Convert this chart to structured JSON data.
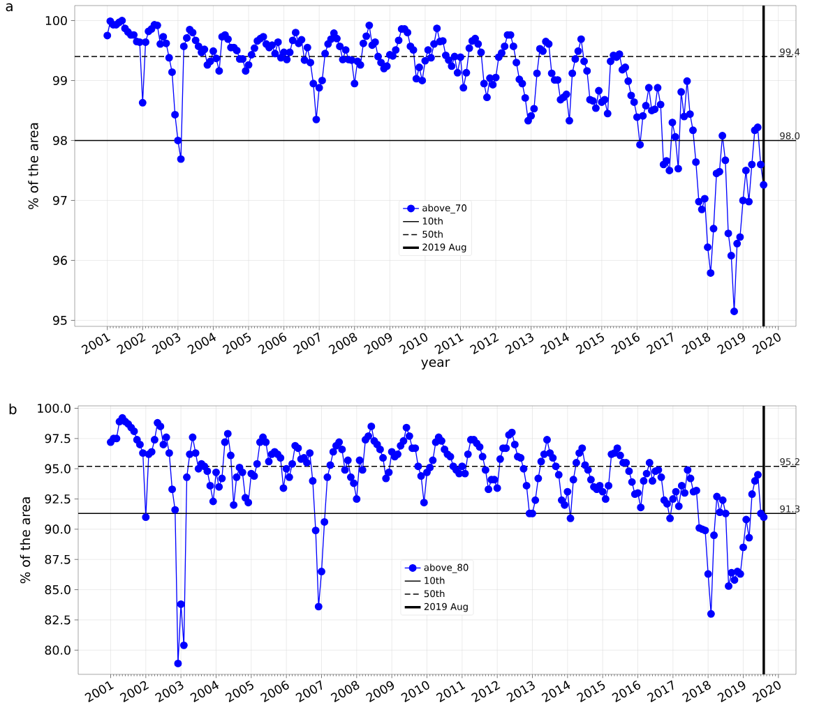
{
  "chart_data": [
    {
      "type": "line",
      "title": "a",
      "xlabel": "year",
      "ylabel": "% of the area",
      "grid": true,
      "legend": "bottom",
      "marker": "circle",
      "x": [
        "2001-01",
        "2001-02",
        "2001-03",
        "2001-04",
        "2001-05",
        "2001-06",
        "2001-07",
        "2001-08",
        "2001-09",
        "2001-10",
        "2001-11",
        "2001-12",
        "2002-01",
        "2002-02",
        "2002-03",
        "2002-04",
        "2002-05",
        "2002-06",
        "2002-07",
        "2002-08",
        "2002-09",
        "2002-10",
        "2002-11",
        "2002-12",
        "2003-01",
        "2003-02",
        "2003-03",
        "2003-04",
        "2003-05",
        "2003-06",
        "2003-07",
        "2003-08",
        "2003-09",
        "2003-10",
        "2003-11",
        "2003-12",
        "2004-01",
        "2004-02",
        "2004-03",
        "2004-04",
        "2004-05",
        "2004-06",
        "2004-07",
        "2004-08",
        "2004-09",
        "2004-10",
        "2004-11",
        "2004-12",
        "2005-01",
        "2005-02",
        "2005-03",
        "2005-04",
        "2005-05",
        "2005-06",
        "2005-07",
        "2005-08",
        "2005-09",
        "2005-10",
        "2005-11",
        "2005-12",
        "2006-01",
        "2006-02",
        "2006-03",
        "2006-04",
        "2006-05",
        "2006-06",
        "2006-07",
        "2006-08",
        "2006-09",
        "2006-10",
        "2006-11",
        "2006-12",
        "2007-01",
        "2007-02",
        "2007-03",
        "2007-04",
        "2007-05",
        "2007-06",
        "2007-07",
        "2007-08",
        "2007-09",
        "2007-10",
        "2007-11",
        "2007-12",
        "2008-01",
        "2008-02",
        "2008-03",
        "2008-04",
        "2008-05",
        "2008-06",
        "2008-07",
        "2008-08",
        "2008-09",
        "2008-10",
        "2008-11",
        "2008-12",
        "2009-01",
        "2009-02",
        "2009-03",
        "2009-04",
        "2009-05",
        "2009-06",
        "2009-07",
        "2009-08",
        "2009-09",
        "2009-10",
        "2009-11",
        "2009-12",
        "2010-01",
        "2010-02",
        "2010-03",
        "2010-04",
        "2010-05",
        "2010-06",
        "2010-07",
        "2010-08",
        "2010-09",
        "2010-10",
        "2010-11",
        "2010-12",
        "2011-01",
        "2011-02",
        "2011-03",
        "2011-04",
        "2011-05",
        "2011-06",
        "2011-07",
        "2011-08",
        "2011-09",
        "2011-10",
        "2011-11",
        "2011-12",
        "2012-01",
        "2012-02",
        "2012-03",
        "2012-04",
        "2012-05",
        "2012-06",
        "2012-07",
        "2012-08",
        "2012-09",
        "2012-10",
        "2012-11",
        "2012-12",
        "2013-01",
        "2013-02",
        "2013-03",
        "2013-04",
        "2013-05",
        "2013-06",
        "2013-07",
        "2013-08",
        "2013-09",
        "2013-10",
        "2013-11",
        "2013-12",
        "2014-01",
        "2014-02",
        "2014-03",
        "2014-04",
        "2014-05",
        "2014-06",
        "2014-07",
        "2014-08",
        "2014-09",
        "2014-10",
        "2014-11",
        "2014-12",
        "2015-01",
        "2015-02",
        "2015-03",
        "2015-04",
        "2015-05",
        "2015-06",
        "2015-07",
        "2015-08",
        "2015-09",
        "2015-10",
        "2015-11",
        "2015-12",
        "2016-01",
        "2016-02",
        "2016-03",
        "2016-04",
        "2016-05",
        "2016-06",
        "2016-07",
        "2016-08",
        "2016-09",
        "2016-10",
        "2016-11",
        "2016-12",
        "2017-01",
        "2017-02",
        "2017-03",
        "2017-04",
        "2017-05",
        "2017-06",
        "2017-07",
        "2017-08",
        "2017-09",
        "2017-10",
        "2017-11",
        "2017-12",
        "2018-01",
        "2018-02",
        "2018-03",
        "2018-04",
        "2018-05",
        "2018-06",
        "2018-07",
        "2018-08",
        "2018-09",
        "2018-10",
        "2018-11",
        "2018-12",
        "2019-01",
        "2019-02",
        "2019-03",
        "2019-04",
        "2019-05",
        "2019-06",
        "2019-07",
        "2019-08"
      ],
      "series": [
        {
          "name": "above_70",
          "color": "#0000ff",
          "values": [
            99.75,
            99.99,
            99.93,
            99.93,
            99.97,
            100.0,
            99.87,
            99.81,
            99.76,
            99.76,
            99.65,
            99.64,
            98.63,
            99.64,
            99.82,
            99.86,
            99.93,
            99.92,
            99.61,
            99.73,
            99.62,
            99.38,
            99.14,
            98.43,
            98.0,
            97.69,
            99.57,
            99.71,
            99.85,
            99.8,
            99.67,
            99.57,
            99.47,
            99.52,
            99.26,
            99.32,
            99.49,
            99.37,
            99.16,
            99.73,
            99.76,
            99.69,
            99.55,
            99.55,
            99.5,
            99.36,
            99.36,
            99.16,
            99.26,
            99.43,
            99.54,
            99.66,
            99.7,
            99.73,
            99.61,
            99.55,
            99.59,
            99.45,
            99.64,
            99.38,
            99.47,
            99.35,
            99.47,
            99.67,
            99.8,
            99.62,
            99.68,
            99.34,
            99.55,
            99.3,
            98.95,
            98.35,
            98.88,
            99.0,
            99.45,
            99.61,
            99.69,
            99.79,
            99.7,
            99.57,
            99.35,
            99.51,
            99.35,
            99.34,
            98.95,
            99.32,
            99.26,
            99.62,
            99.74,
            99.92,
            99.59,
            99.64,
            99.4,
            99.3,
            99.2,
            99.24,
            99.43,
            99.41,
            99.51,
            99.67,
            99.86,
            99.86,
            99.8,
            99.57,
            99.51,
            99.03,
            99.22,
            99.0,
            99.33,
            99.51,
            99.38,
            99.61,
            99.87,
            99.65,
            99.66,
            99.42,
            99.34,
            99.24,
            99.4,
            99.13,
            99.39,
            98.88,
            99.13,
            99.54,
            99.66,
            99.7,
            99.61,
            99.47,
            98.95,
            98.72,
            99.04,
            98.93,
            99.05,
            99.39,
            99.46,
            99.57,
            99.76,
            99.76,
            99.57,
            99.3,
            99.02,
            98.95,
            98.71,
            98.33,
            98.41,
            98.53,
            99.12,
            99.53,
            99.49,
            99.65,
            99.61,
            99.12,
            99.01,
            99.01,
            98.68,
            98.72,
            98.77,
            98.33,
            99.12,
            99.36,
            99.49,
            99.69,
            99.32,
            99.16,
            98.68,
            98.66,
            98.54,
            98.83,
            98.64,
            98.68,
            98.45,
            99.32,
            99.42,
            99.39,
            99.44,
            99.18,
            99.22,
            98.99,
            98.75,
            98.64,
            98.39,
            97.93,
            98.41,
            98.58,
            98.88,
            98.5,
            98.52,
            98.88,
            98.6,
            97.6,
            97.66,
            97.5,
            98.3,
            98.06,
            97.53,
            98.81,
            98.4,
            98.99,
            98.44,
            98.17,
            97.64,
            96.98,
            96.85,
            97.03,
            96.22,
            95.79,
            96.53,
            97.45,
            97.48,
            98.08,
            97.67,
            96.45,
            96.08,
            95.15,
            96.28,
            96.39,
            97.0,
            97.5,
            96.98,
            97.6,
            98.17,
            98.22,
            97.6,
            97.26
          ]
        }
      ],
      "ref_lines": [
        {
          "axis": "y",
          "value": 98.0,
          "label": "10th",
          "line_style": "solid"
        },
        {
          "axis": "y",
          "value": 99.4,
          "label": "50th",
          "line_style": "dashed"
        },
        {
          "axis": "x",
          "value": "2019-08",
          "label": "2019 Aug",
          "line_style": "solid"
        }
      ],
      "annotations": [
        {
          "text": "99.4",
          "x": "2020-01",
          "y": 99.4
        },
        {
          "text": "98.0",
          "x": "2020-01",
          "y": 98.0
        }
      ],
      "xlim": [
        "2000-01-29",
        "2020-07-01"
      ],
      "ylim": [
        94.9,
        100.25
      ],
      "xticks": [
        "2001",
        "2002",
        "2003",
        "2004",
        "2005",
        "2006",
        "2007",
        "2008",
        "2009",
        "2010",
        "2011",
        "2012",
        "2013",
        "2014",
        "2015",
        "2016",
        "2017",
        "2018",
        "2019",
        "2020"
      ],
      "yticks": [
        95,
        96,
        97,
        98,
        99,
        100
      ]
    },
    {
      "type": "line",
      "title": "b",
      "ylabel": "% of the area",
      "grid": true,
      "legend": "bottom",
      "marker": "circle",
      "x": [
        "2001-01",
        "2001-02",
        "2001-03",
        "2001-04",
        "2001-05",
        "2001-06",
        "2001-07",
        "2001-08",
        "2001-09",
        "2001-10",
        "2001-11",
        "2001-12",
        "2002-01",
        "2002-02",
        "2002-03",
        "2002-04",
        "2002-05",
        "2002-06",
        "2002-07",
        "2002-08",
        "2002-09",
        "2002-10",
        "2002-11",
        "2002-12",
        "2003-01",
        "2003-02",
        "2003-03",
        "2003-04",
        "2003-05",
        "2003-06",
        "2003-07",
        "2003-08",
        "2003-09",
        "2003-10",
        "2003-11",
        "2003-12",
        "2004-01",
        "2004-02",
        "2004-03",
        "2004-04",
        "2004-05",
        "2004-06",
        "2004-07",
        "2004-08",
        "2004-09",
        "2004-10",
        "2004-11",
        "2004-12",
        "2005-01",
        "2005-02",
        "2005-03",
        "2005-04",
        "2005-05",
        "2005-06",
        "2005-07",
        "2005-08",
        "2005-09",
        "2005-10",
        "2005-11",
        "2005-12",
        "2006-01",
        "2006-02",
        "2006-03",
        "2006-04",
        "2006-05",
        "2006-06",
        "2006-07",
        "2006-08",
        "2006-09",
        "2006-10",
        "2006-11",
        "2006-12",
        "2007-01",
        "2007-02",
        "2007-03",
        "2007-04",
        "2007-05",
        "2007-06",
        "2007-07",
        "2007-08",
        "2007-09",
        "2007-10",
        "2007-11",
        "2007-12",
        "2008-01",
        "2008-02",
        "2008-03",
        "2008-04",
        "2008-05",
        "2008-06",
        "2008-07",
        "2008-08",
        "2008-09",
        "2008-10",
        "2008-11",
        "2008-12",
        "2009-01",
        "2009-02",
        "2009-03",
        "2009-04",
        "2009-05",
        "2009-06",
        "2009-07",
        "2009-08",
        "2009-09",
        "2009-10",
        "2009-11",
        "2009-12",
        "2010-01",
        "2010-02",
        "2010-03",
        "2010-04",
        "2010-05",
        "2010-06",
        "2010-07",
        "2010-08",
        "2010-09",
        "2010-10",
        "2010-11",
        "2010-12",
        "2011-01",
        "2011-02",
        "2011-03",
        "2011-04",
        "2011-05",
        "2011-06",
        "2011-07",
        "2011-08",
        "2011-09",
        "2011-10",
        "2011-11",
        "2011-12",
        "2012-01",
        "2012-02",
        "2012-03",
        "2012-04",
        "2012-05",
        "2012-06",
        "2012-07",
        "2012-08",
        "2012-09",
        "2012-10",
        "2012-11",
        "2012-12",
        "2013-01",
        "2013-02",
        "2013-03",
        "2013-04",
        "2013-05",
        "2013-06",
        "2013-07",
        "2013-08",
        "2013-09",
        "2013-10",
        "2013-11",
        "2013-12",
        "2014-01",
        "2014-02",
        "2014-03",
        "2014-04",
        "2014-05",
        "2014-06",
        "2014-07",
        "2014-08",
        "2014-09",
        "2014-10",
        "2014-11",
        "2014-12",
        "2015-01",
        "2015-02",
        "2015-03",
        "2015-04",
        "2015-05",
        "2015-06",
        "2015-07",
        "2015-08",
        "2015-09",
        "2015-10",
        "2015-11",
        "2015-12",
        "2016-01",
        "2016-02",
        "2016-03",
        "2016-04",
        "2016-05",
        "2016-06",
        "2016-07",
        "2016-08",
        "2016-09",
        "2016-10",
        "2016-11",
        "2016-12",
        "2017-01",
        "2017-02",
        "2017-03",
        "2017-04",
        "2017-05",
        "2017-06",
        "2017-07",
        "2017-08",
        "2017-09",
        "2017-10",
        "2017-11",
        "2017-12",
        "2018-01",
        "2018-02",
        "2018-03",
        "2018-04",
        "2018-05",
        "2018-06",
        "2018-07",
        "2018-08",
        "2018-09",
        "2018-10",
        "2018-11",
        "2018-12",
        "2019-01",
        "2019-02",
        "2019-03",
        "2019-04",
        "2019-05",
        "2019-06",
        "2019-07",
        "2019-08"
      ],
      "series": [
        {
          "name": "above_80",
          "color": "#0000ff",
          "values": [
            97.2,
            97.5,
            97.5,
            98.9,
            99.2,
            98.9,
            98.7,
            98.4,
            98.1,
            97.4,
            97.0,
            96.3,
            91.0,
            96.2,
            96.4,
            97.4,
            98.8,
            98.5,
            97.0,
            97.6,
            96.3,
            93.3,
            91.6,
            78.9,
            83.8,
            80.4,
            94.3,
            96.2,
            97.6,
            96.3,
            95.0,
            95.4,
            95.2,
            94.8,
            93.6,
            92.3,
            94.7,
            93.5,
            94.2,
            97.2,
            97.9,
            96.1,
            92.0,
            94.3,
            95.1,
            94.7,
            92.6,
            92.2,
            94.6,
            94.4,
            95.4,
            97.2,
            97.6,
            97.2,
            95.6,
            96.2,
            96.4,
            96.2,
            95.9,
            93.4,
            95.0,
            94.3,
            95.4,
            96.9,
            96.7,
            95.8,
            95.9,
            95.5,
            96.3,
            94.0,
            89.9,
            83.6,
            86.5,
            90.6,
            94.3,
            95.3,
            96.4,
            96.9,
            97.2,
            96.6,
            94.9,
            95.7,
            94.3,
            93.8,
            92.5,
            95.7,
            94.9,
            97.4,
            97.7,
            98.5,
            97.3,
            97.0,
            96.6,
            95.9,
            94.2,
            94.7,
            96.4,
            96.0,
            96.2,
            96.9,
            97.3,
            98.4,
            97.7,
            96.7,
            96.7,
            95.2,
            94.4,
            92.2,
            94.7,
            95.1,
            95.7,
            97.2,
            97.6,
            97.3,
            96.6,
            96.2,
            96.0,
            95.2,
            94.9,
            94.6,
            95.2,
            94.6,
            96.2,
            97.4,
            97.4,
            97.1,
            96.8,
            96.0,
            94.9,
            93.3,
            94.1,
            94.1,
            93.4,
            95.8,
            96.7,
            96.7,
            97.8,
            98.0,
            97.0,
            96.0,
            95.9,
            95.0,
            93.6,
            91.3,
            91.3,
            92.4,
            94.2,
            95.6,
            96.2,
            97.4,
            96.3,
            95.9,
            95.2,
            94.5,
            92.4,
            92.0,
            93.1,
            90.9,
            94.1,
            95.5,
            96.3,
            96.7,
            95.3,
            94.9,
            94.1,
            93.5,
            93.3,
            93.6,
            93.1,
            92.5,
            93.6,
            96.2,
            96.3,
            96.7,
            96.1,
            95.5,
            95.5,
            94.8,
            93.9,
            92.9,
            93.0,
            91.8,
            94.0,
            94.6,
            95.5,
            94.0,
            94.8,
            94.9,
            94.3,
            92.4,
            92.1,
            90.9,
            92.5,
            93.1,
            91.9,
            93.6,
            93.0,
            94.9,
            94.2,
            93.1,
            93.2,
            90.1,
            90.0,
            89.9,
            86.3,
            83.0,
            89.5,
            92.7,
            91.4,
            92.4,
            91.3,
            85.3,
            86.4,
            85.8,
            86.5,
            86.3,
            88.5,
            90.8,
            89.3,
            92.9,
            94.0,
            94.5,
            91.3,
            91.0
          ]
        }
      ],
      "ref_lines": [
        {
          "axis": "y",
          "value": 91.3,
          "label": "10th",
          "line_style": "solid"
        },
        {
          "axis": "y",
          "value": 95.2,
          "label": "50th",
          "line_style": "dashed"
        },
        {
          "axis": "x",
          "value": "2019-08",
          "label": "2019 Aug",
          "line_style": "solid"
        }
      ],
      "annotations": [
        {
          "text": "95.2",
          "x": "2020-01",
          "y": 95.2
        },
        {
          "text": "91.3",
          "x": "2020-01",
          "y": 91.3
        }
      ],
      "xlim": [
        "2000-01-29",
        "2020-07-01"
      ],
      "ylim": [
        78.0,
        100.2
      ],
      "xticks": [
        "2001",
        "2002",
        "2003",
        "2004",
        "2005",
        "2006",
        "2007",
        "2008",
        "2009",
        "2010",
        "2011",
        "2012",
        "2013",
        "2014",
        "2015",
        "2016",
        "2017",
        "2018",
        "2019",
        "2020"
      ],
      "yticks": [
        {
          "value": 80,
          "label": "80.0"
        },
        82.5,
        {
          "value": 85,
          "label": "85.0"
        },
        87.5,
        {
          "value": 90,
          "label": "90.0"
        },
        92.5,
        {
          "value": 95,
          "label": "95.0"
        },
        97.5,
        {
          "value": 100,
          "label": "100.0"
        }
      ]
    }
  ]
}
